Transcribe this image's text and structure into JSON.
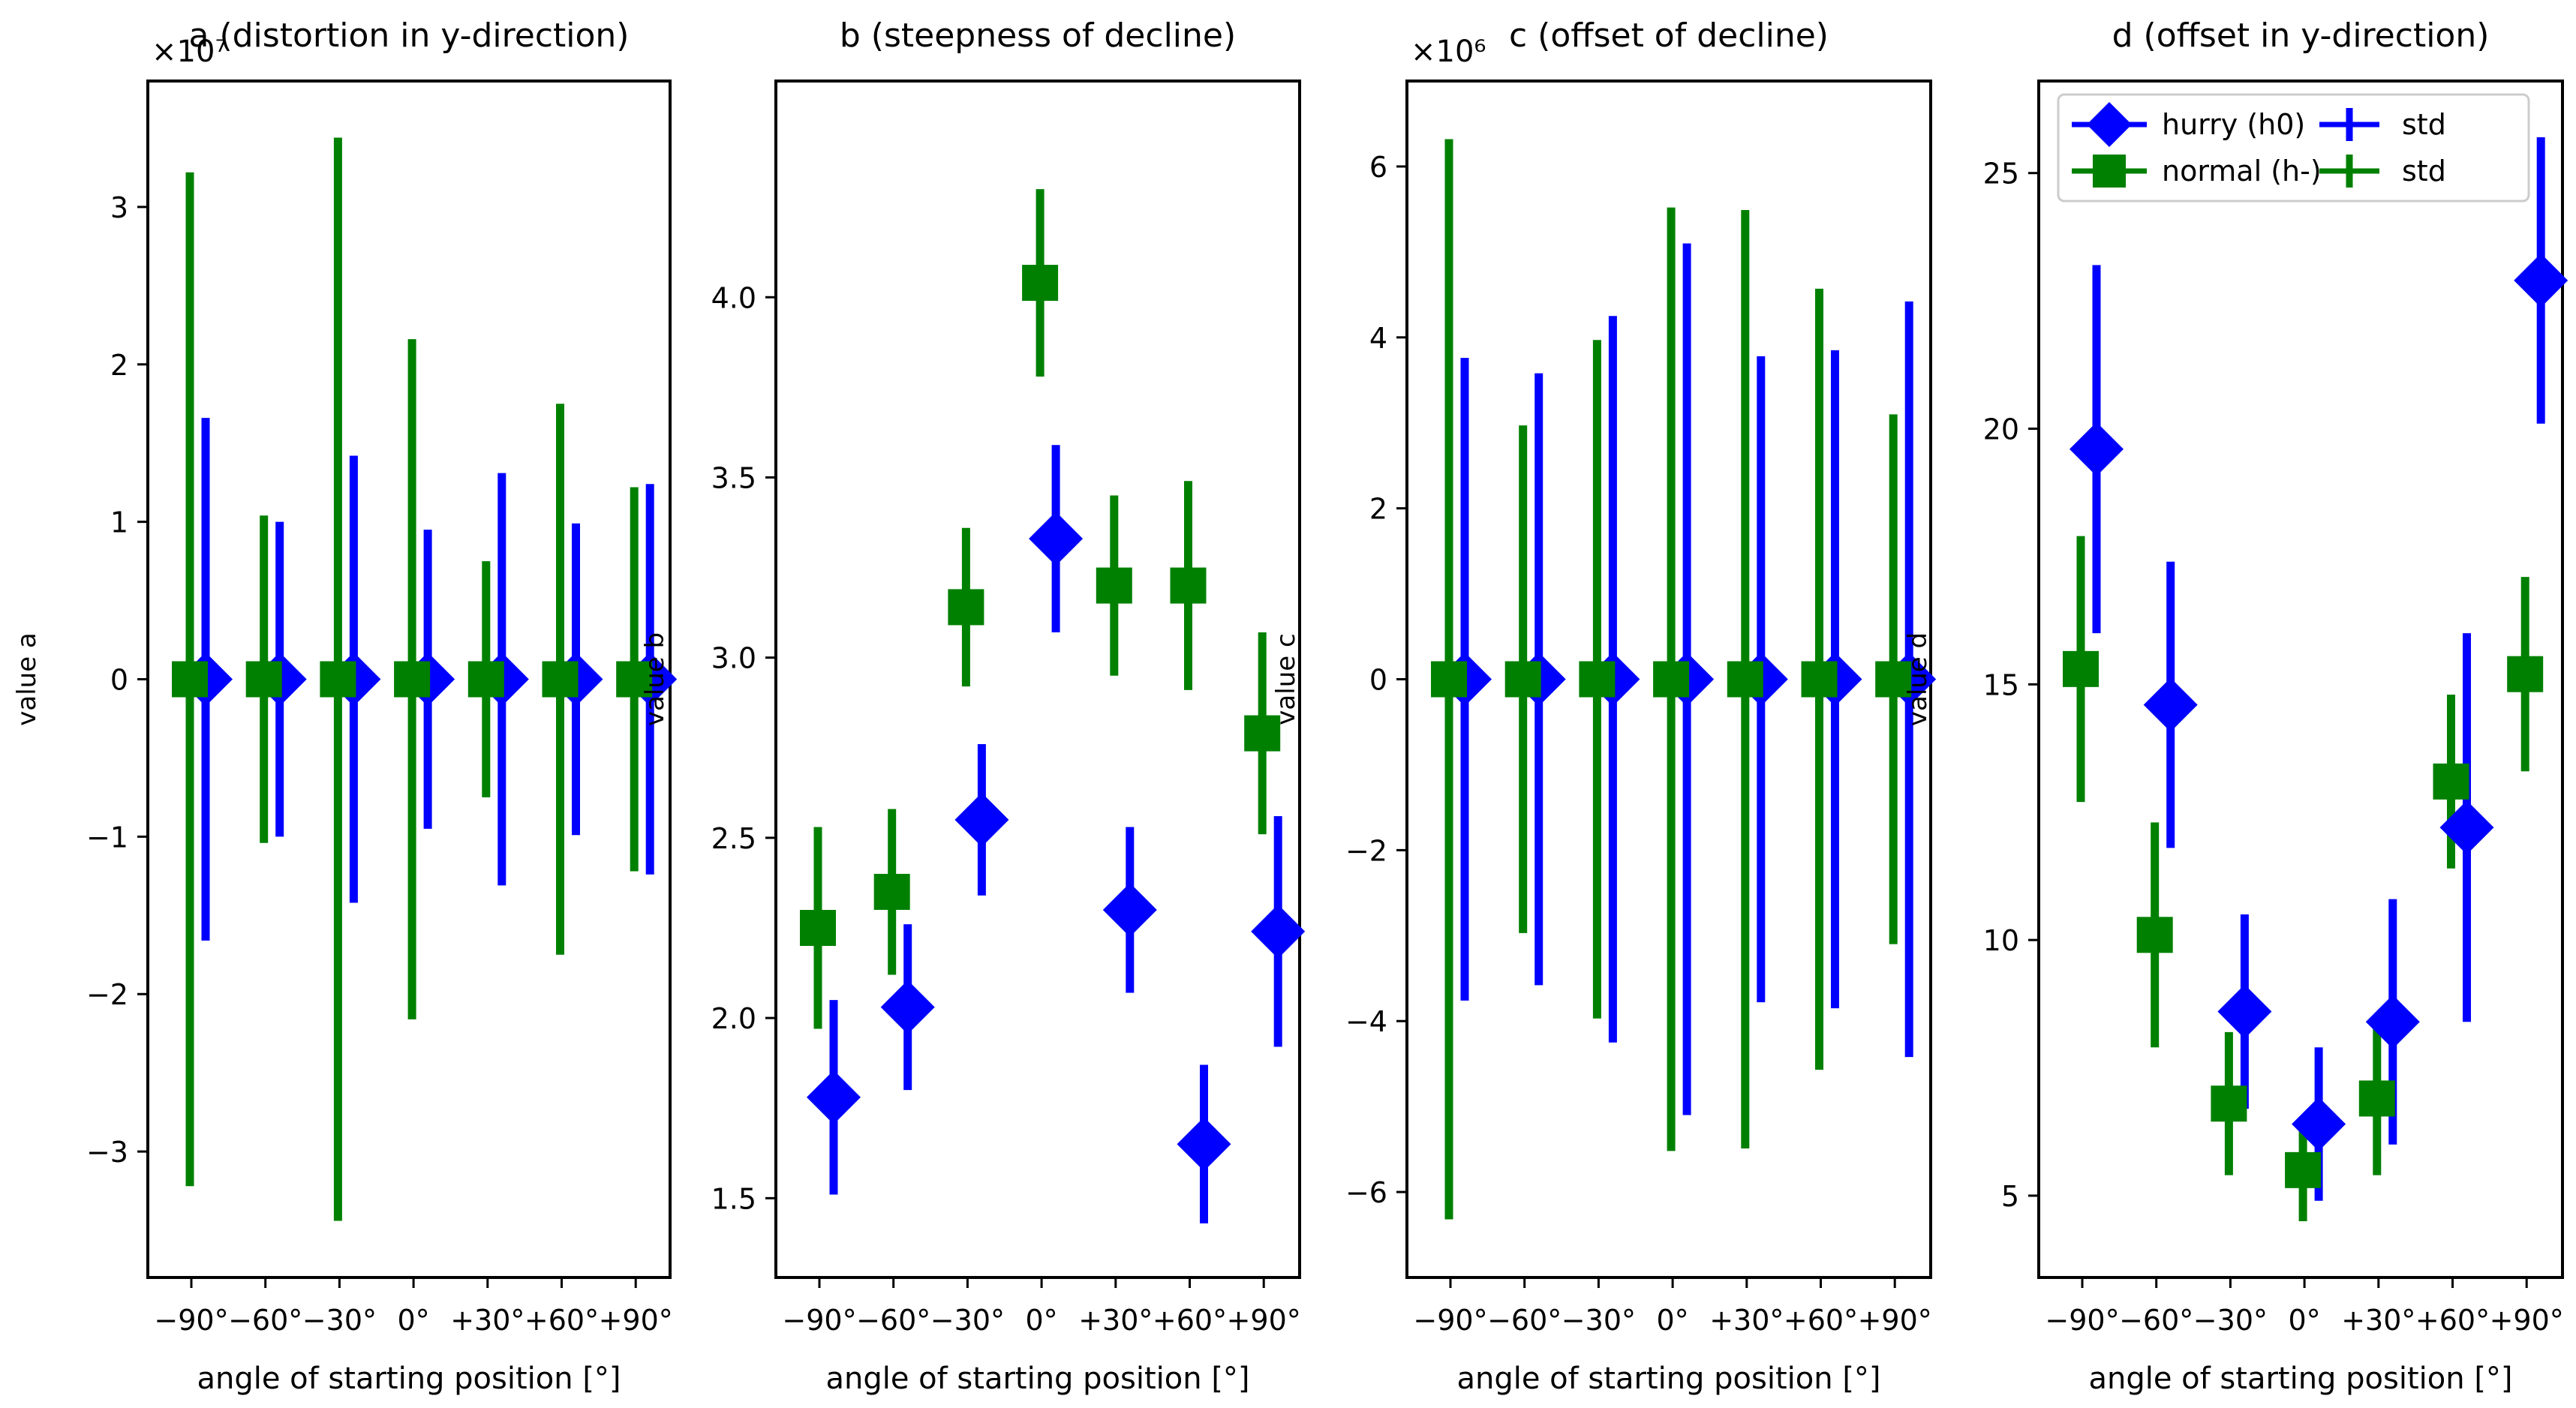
{
  "figure": {
    "colors": {
      "hurry": "#0000ff",
      "normal": "#008000",
      "axes": "#000000"
    },
    "legend": {
      "placement": "upper inside panel d",
      "entries": [
        {
          "label": "hurry (h0)",
          "marker": "diamond",
          "color": "#0000ff"
        },
        {
          "label": "normal (h-)",
          "marker": "square",
          "color": "#008000"
        },
        {
          "label": "std",
          "marker": "errorbar",
          "color": "#0000ff"
        },
        {
          "label": "std",
          "marker": "errorbar",
          "color": "#008000"
        }
      ]
    }
  },
  "chart_data": [
    {
      "type": "scatter",
      "title": "a (distortion in y-direction)",
      "xlabel": "angle of starting position [°]",
      "ylabel": "value a",
      "scale_label": "×10⁷",
      "categories": [
        "−90°",
        "−60°",
        "−30°",
        "0°",
        "+30°",
        "+60°",
        "+90°"
      ],
      "ylim": [
        -3.8,
        3.8
      ],
      "yticks": [
        -3,
        -2,
        -1,
        0,
        1,
        2,
        3
      ],
      "ytick_labels": [
        "−3",
        "−2",
        "−1",
        "0",
        "1",
        "2",
        "3"
      ],
      "grid": false,
      "series": [
        {
          "name": "hurry (h0)",
          "values": [
            0,
            0,
            0,
            0,
            0,
            0,
            0
          ],
          "std": [
            1.66,
            1.0,
            1.42,
            0.95,
            1.31,
            0.99,
            1.24
          ]
        },
        {
          "name": "normal (h-)",
          "values": [
            0,
            0,
            0,
            0,
            0,
            0,
            0
          ],
          "std": [
            3.22,
            1.04,
            3.44,
            2.16,
            0.75,
            1.75,
            1.22
          ]
        }
      ]
    },
    {
      "type": "scatter",
      "title": "b (steepness of decline)",
      "xlabel": "angle of starting position [°]",
      "ylabel": "value b",
      "scale_label": "",
      "categories": [
        "−90°",
        "−60°",
        "−30°",
        "0°",
        "+30°",
        "+60°",
        "+90°"
      ],
      "ylim": [
        1.28,
        4.6
      ],
      "yticks": [
        1.5,
        2.0,
        2.5,
        3.0,
        3.5,
        4.0
      ],
      "ytick_labels": [
        "1.5",
        "2.0",
        "2.5",
        "3.0",
        "3.5",
        "4.0"
      ],
      "grid": false,
      "series": [
        {
          "name": "hurry (h0)",
          "values": [
            1.78,
            2.03,
            2.55,
            3.33,
            2.3,
            1.65,
            2.24
          ],
          "std": [
            0.27,
            0.23,
            0.21,
            0.26,
            0.23,
            0.22,
            0.32
          ]
        },
        {
          "name": "normal (h-)",
          "values": [
            2.25,
            2.35,
            3.14,
            4.04,
            3.2,
            3.2,
            2.79
          ],
          "std": [
            0.28,
            0.23,
            0.22,
            0.26,
            0.25,
            0.29,
            0.28
          ]
        }
      ]
    },
    {
      "type": "scatter",
      "title": "c (offset of decline)",
      "xlabel": "angle of starting position [°]",
      "ylabel": "value c",
      "scale_label": "×10⁶",
      "categories": [
        "−90°",
        "−60°",
        "−30°",
        "0°",
        "+30°",
        "+60°",
        "+90°"
      ],
      "ylim": [
        -7.0,
        7.0
      ],
      "yticks": [
        -6,
        -4,
        -2,
        0,
        2,
        4,
        6
      ],
      "ytick_labels": [
        "−6",
        "−4",
        "−2",
        "0",
        "2",
        "4",
        "6"
      ],
      "grid": false,
      "series": [
        {
          "name": "hurry (h0)",
          "values": [
            0,
            0,
            0,
            0,
            0,
            0,
            0
          ],
          "std": [
            3.76,
            3.58,
            4.25,
            5.1,
            3.78,
            3.85,
            4.42
          ]
        },
        {
          "name": "normal (h-)",
          "values": [
            0,
            0,
            0,
            0,
            0,
            0,
            0
          ],
          "std": [
            6.32,
            2.97,
            3.97,
            5.52,
            5.49,
            4.57,
            3.1
          ]
        }
      ]
    },
    {
      "type": "scatter",
      "title": "d (offset in y-direction)",
      "xlabel": "angle of starting position [°]",
      "ylabel": "value d",
      "scale_label": "",
      "categories": [
        "−90°",
        "−60°",
        "−30°",
        "0°",
        "+30°",
        "+60°",
        "+90°"
      ],
      "ylim": [
        3.4,
        26.8
      ],
      "yticks": [
        5,
        10,
        15,
        20,
        25
      ],
      "ytick_labels": [
        "5",
        "10",
        "15",
        "20",
        "25"
      ],
      "grid": false,
      "series": [
        {
          "name": "hurry (h0)",
          "values": [
            19.6,
            14.6,
            8.6,
            6.4,
            8.4,
            12.2,
            22.9
          ],
          "std": [
            3.6,
            2.8,
            1.9,
            1.5,
            2.4,
            3.8,
            2.8
          ]
        },
        {
          "name": "normal (h-)",
          "values": [
            15.3,
            10.1,
            6.8,
            5.5,
            6.9,
            13.1,
            15.2
          ],
          "std": [
            2.6,
            2.2,
            1.4,
            1.0,
            1.5,
            1.7,
            1.9
          ]
        }
      ]
    }
  ]
}
